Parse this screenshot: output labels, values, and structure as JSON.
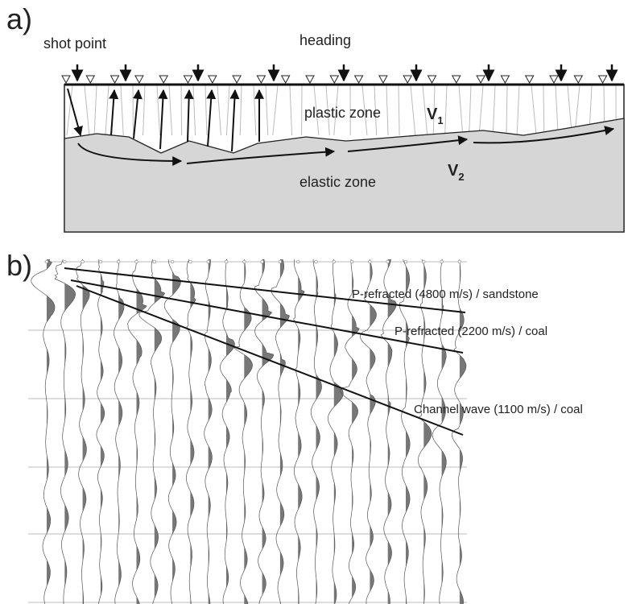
{
  "panel_a": {
    "label": "a)",
    "shot_point": "shot point",
    "heading": "heading",
    "plastic_zone": "plastic zone",
    "v1": {
      "symbol": "V",
      "subscript": "1"
    },
    "elastic_zone": "elastic zone",
    "v2": {
      "symbol": "V",
      "subscript": "2"
    }
  },
  "panel_b": {
    "label": "b)",
    "annotations": [
      "P-refracted (4800 m/s) / sandstone",
      "P-refracted (2200 m/s) / coal",
      "Channel wave (1100 m/s) / coal"
    ]
  }
}
